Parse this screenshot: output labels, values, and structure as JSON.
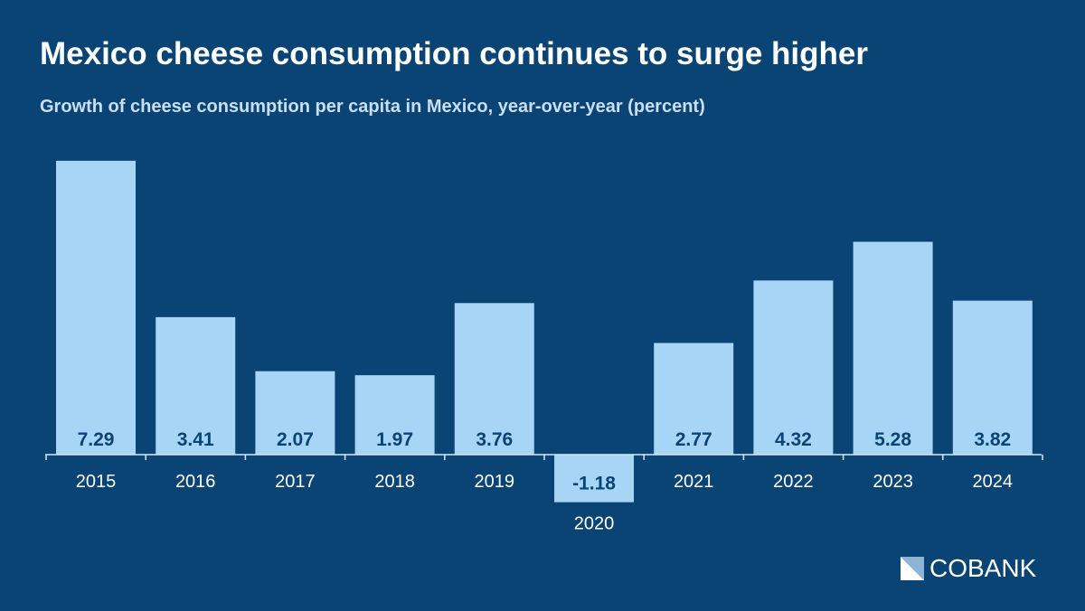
{
  "chart_data": {
    "type": "bar",
    "title": "Mexico cheese consumption continues to surge higher",
    "subtitle": "Growth of cheese consumption per capita in Mexico, year-over-year (percent)",
    "categories": [
      "2015",
      "2016",
      "2017",
      "2018",
      "2019",
      "2020",
      "2021",
      "2022",
      "2023",
      "2024"
    ],
    "values": [
      7.29,
      3.41,
      2.07,
      1.97,
      3.76,
      -1.18,
      2.77,
      4.32,
      5.28,
      3.82
    ],
    "xlabel": "",
    "ylabel": "",
    "ylim": [
      -1.18,
      7.29
    ],
    "grid": false,
    "colors": {
      "background": "#0a4474",
      "bar": "#a6d5f5",
      "label": "#0a4474",
      "text": "#ffffff"
    }
  },
  "logo": {
    "text": "COBANK"
  }
}
